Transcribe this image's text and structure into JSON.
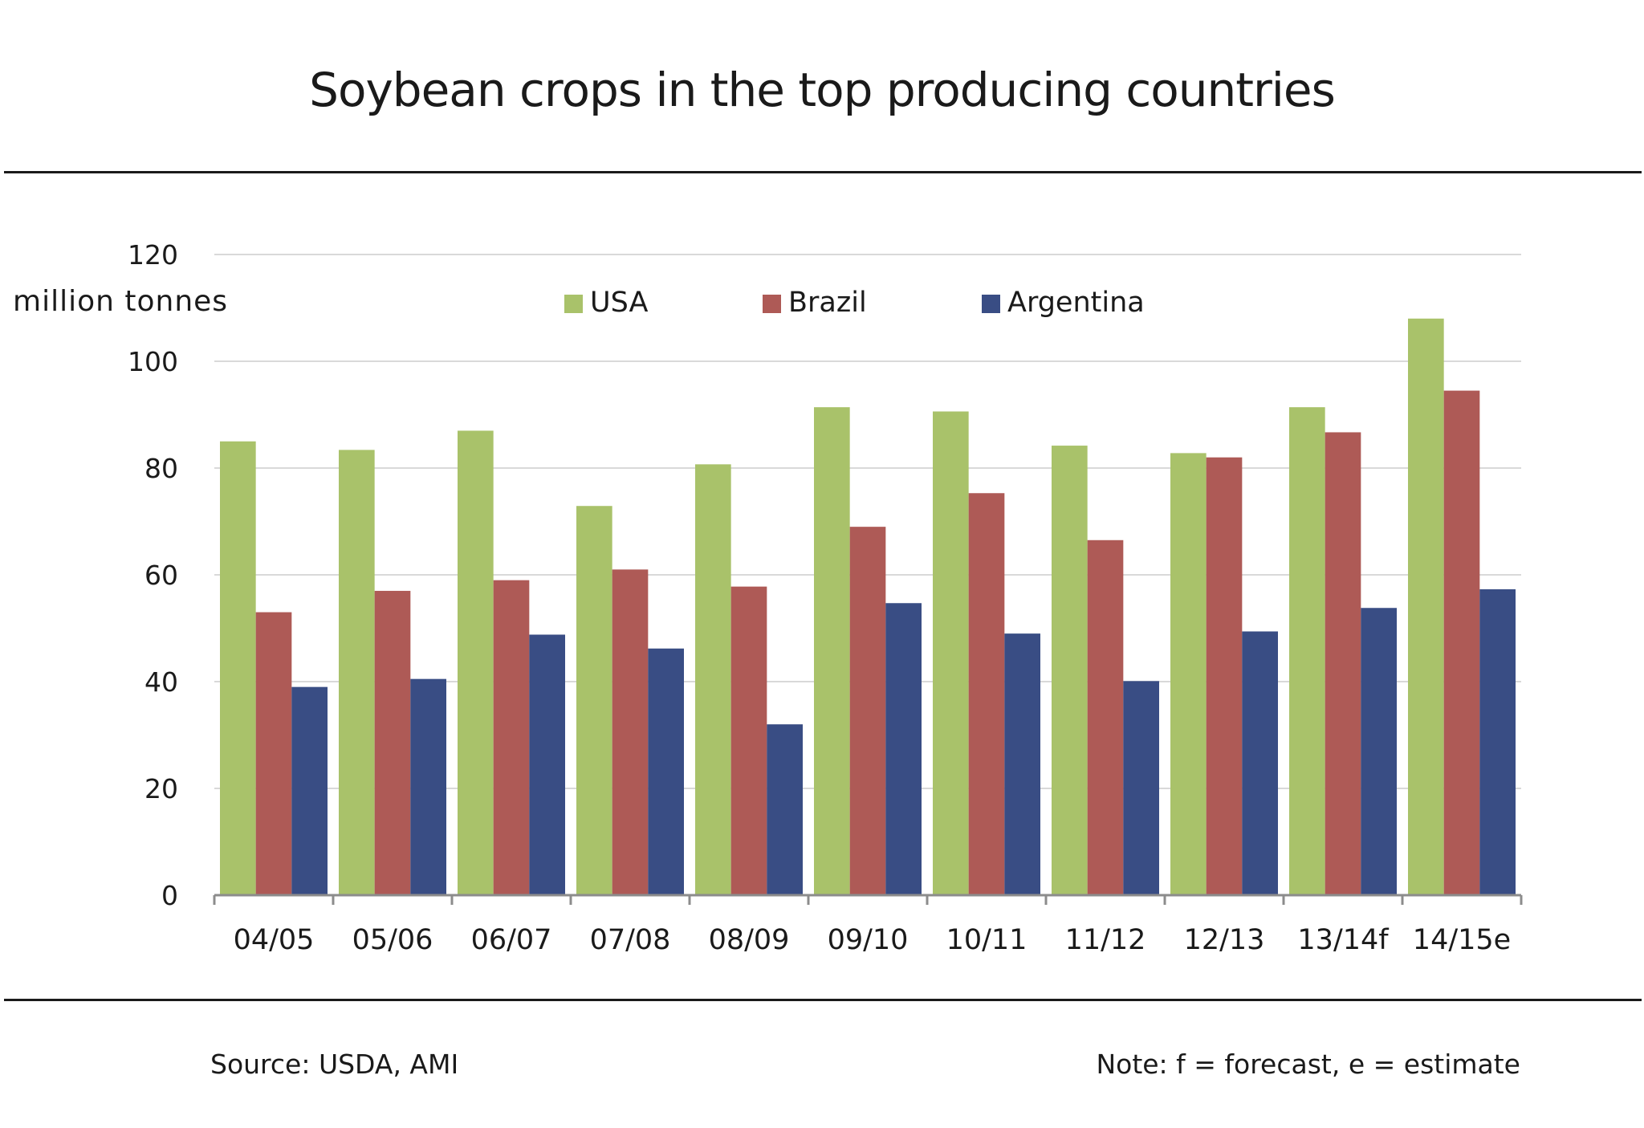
{
  "title": "Soybean crops in the top producing countries",
  "footer": {
    "source": "Source: USDA, AMI",
    "note": "Note: f = forecast, e = estimate"
  },
  "chart_data": {
    "type": "bar",
    "title": "Soybean crops in the top producing countries",
    "ylabel": "million tonnes",
    "xlabel": "",
    "ylim": [
      0,
      120
    ],
    "yticks": [
      0,
      20,
      40,
      60,
      80,
      100,
      120
    ],
    "grid": true,
    "legend_position": "top-center",
    "categories": [
      "04/05",
      "05/06",
      "06/07",
      "07/08",
      "08/09",
      "09/10",
      "10/11",
      "11/12",
      "12/13",
      "13/14f",
      "14/15e"
    ],
    "series": [
      {
        "name": "USA",
        "color": "#a9c26a",
        "values": [
          85.0,
          83.4,
          87.0,
          72.9,
          80.7,
          91.4,
          90.6,
          84.2,
          82.8,
          91.4,
          108.0
        ]
      },
      {
        "name": "Brazil",
        "color": "#ae5a56",
        "values": [
          53.0,
          57.0,
          59.0,
          61.0,
          57.8,
          69.0,
          75.3,
          66.5,
          82.0,
          86.7,
          94.5
        ]
      },
      {
        "name": "Argentina",
        "color": "#394d84",
        "values": [
          39.0,
          40.5,
          48.8,
          46.2,
          32.0,
          54.7,
          49.0,
          40.1,
          49.4,
          53.8,
          57.3
        ]
      }
    ]
  }
}
